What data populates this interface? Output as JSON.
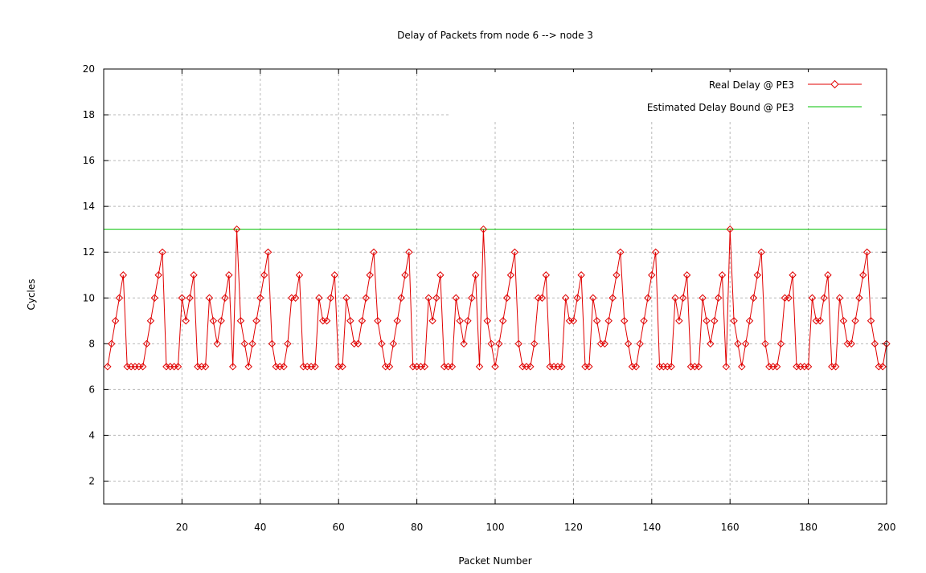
{
  "chart_data": {
    "type": "line",
    "title": "Delay of Packets from node 6 --> node 3",
    "xlabel": "Packet Number",
    "ylabel": "Cycles",
    "xlim": [
      0,
      200
    ],
    "ylim": [
      1,
      20
    ],
    "x_ticks": [
      20,
      40,
      60,
      80,
      100,
      120,
      140,
      160,
      180,
      200
    ],
    "y_ticks": [
      2,
      4,
      6,
      8,
      10,
      12,
      14,
      16,
      18,
      20
    ],
    "grid": true,
    "legend_position": "top-right",
    "series": [
      {
        "name": "Real Delay @ PE3",
        "color": "#e00000",
        "marker": "diamond",
        "x": [
          1,
          2,
          3,
          4,
          5,
          6,
          7,
          8,
          9,
          10,
          11,
          12,
          13,
          14,
          15,
          16,
          17,
          18,
          19,
          20,
          21,
          22,
          23,
          24,
          25,
          26,
          27,
          28,
          29,
          30,
          31,
          32,
          33,
          34,
          35,
          36,
          37,
          38,
          39,
          40,
          41,
          42,
          43,
          44,
          45,
          46,
          47,
          48,
          49,
          50,
          51,
          52,
          53,
          54,
          55,
          56,
          57,
          58,
          59,
          60,
          61,
          62,
          63,
          64,
          65,
          66,
          67,
          68,
          69,
          70,
          71,
          72,
          73,
          74,
          75,
          76,
          77,
          78,
          79,
          80,
          81,
          82,
          83,
          84,
          85,
          86,
          87,
          88,
          89,
          90,
          91,
          92,
          93,
          94,
          95,
          96,
          97,
          98,
          99,
          100,
          101,
          102,
          103,
          104,
          105,
          106,
          107,
          108,
          109,
          110,
          111,
          112,
          113,
          114,
          115,
          116,
          117,
          118,
          119,
          120,
          121,
          122,
          123,
          124,
          125,
          126,
          127,
          128,
          129,
          130,
          131,
          132,
          133,
          134,
          135,
          136,
          137,
          138,
          139,
          140,
          141,
          142,
          143,
          144,
          145,
          146,
          147,
          148,
          149,
          150,
          151,
          152,
          153,
          154,
          155,
          156,
          157,
          158,
          159,
          160,
          161,
          162,
          163,
          164,
          165,
          166,
          167,
          168,
          169,
          170,
          171,
          172,
          173,
          174,
          175,
          176,
          177,
          178,
          179,
          180,
          181,
          182,
          183,
          184,
          185,
          186,
          187,
          188,
          189,
          190,
          191,
          192,
          193,
          194,
          195,
          196,
          197,
          198,
          199,
          200
        ],
        "y": [
          7,
          8,
          9,
          10,
          11,
          7,
          7,
          7,
          7,
          7,
          8,
          9,
          10,
          11,
          12,
          7,
          7,
          7,
          7,
          10,
          9,
          10,
          11,
          7,
          7,
          7,
          10,
          9,
          8,
          9,
          10,
          11,
          7,
          13,
          9,
          8,
          7,
          8,
          9,
          10,
          11,
          12,
          8,
          7,
          7,
          7,
          8,
          10,
          10,
          11,
          7,
          7,
          7,
          7,
          10,
          9,
          9,
          10,
          11,
          7,
          7,
          10,
          9,
          8,
          8,
          9,
          10,
          11,
          12,
          9,
          8,
          7,
          7,
          8,
          9,
          10,
          11,
          12,
          7,
          7,
          7,
          7,
          10,
          9,
          10,
          11,
          7,
          7,
          7,
          10,
          9,
          8,
          9,
          10,
          11,
          7,
          13,
          9,
          8,
          7,
          8,
          9,
          10,
          11,
          12,
          8,
          7,
          7,
          7,
          8,
          10,
          10,
          11,
          7,
          7,
          7,
          7,
          10,
          9,
          9,
          10,
          11,
          7,
          7,
          10,
          9,
          8,
          8,
          9,
          10,
          11,
          12,
          9,
          8,
          7,
          7,
          8,
          9,
          10,
          11,
          12,
          7,
          7,
          7,
          7,
          10,
          9,
          10,
          11,
          7,
          7,
          7,
          10,
          9,
          8,
          9,
          10,
          11,
          7,
          13,
          9,
          8,
          7,
          8,
          9,
          10,
          11,
          12,
          8,
          7,
          7,
          7,
          8,
          10,
          10,
          11,
          7,
          7,
          7,
          7,
          10,
          9,
          9,
          10,
          11,
          7,
          7,
          10,
          9,
          8,
          8,
          9,
          10,
          11,
          12,
          9,
          8,
          7,
          7,
          8
        ]
      },
      {
        "name": "Estimated Delay Bound @  PE3",
        "color": "#00c000",
        "marker": "none",
        "x": [
          0,
          200
        ],
        "y": [
          13,
          13
        ]
      }
    ]
  }
}
